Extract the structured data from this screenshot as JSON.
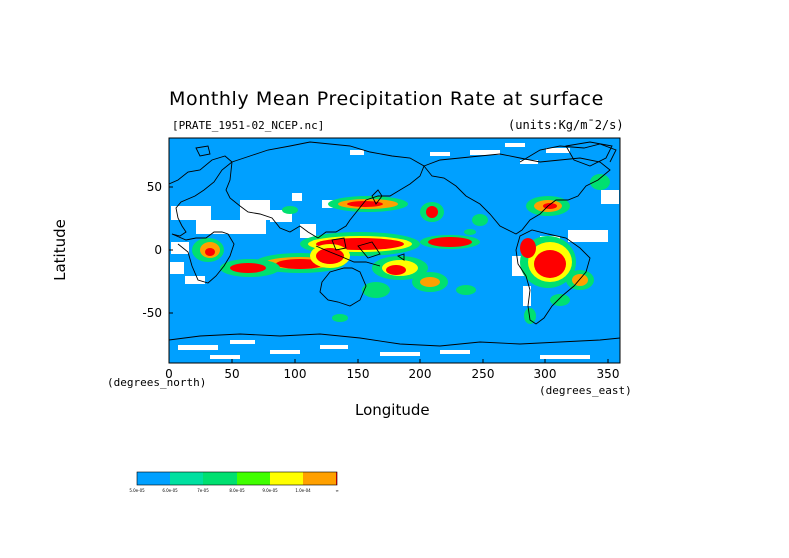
{
  "title": "Monthly Mean Precipitation Rate at surface",
  "file_label": "[PRATE_1951-02_NCEP.nc]",
  "units_label": "(units:Kg/m¯2/s)",
  "axes": {
    "x_title": "Longitude",
    "y_title": "Latitude",
    "x_units": "(degrees_east)",
    "y_units": "(degrees_north)",
    "x_ticks": [
      "0",
      "50",
      "100",
      "150",
      "200",
      "250",
      "300",
      "350"
    ],
    "y_ticks": [
      "50",
      "0",
      "-50"
    ]
  },
  "chart_data": {
    "type": "heatmap",
    "title": "Monthly Mean Precipitation Rate at surface",
    "xlabel": "Longitude",
    "ylabel": "Latitude",
    "xlim": [
      0,
      360
    ],
    "ylim": [
      -90,
      90
    ],
    "x_tick_values": [
      0,
      50,
      100,
      150,
      200,
      250,
      300,
      350
    ],
    "y_tick_values": [
      50,
      0,
      -50
    ],
    "colorbar": {
      "colors": [
        "#00a0ff",
        "#00e0a0",
        "#00e070",
        "#40ff00",
        "#ffff00",
        "#ffa000",
        "#ff0000"
      ],
      "labels": [
        "5.0e-05",
        "6.0e-05",
        "7e-05",
        "8.0e-05",
        "9.0e-05",
        "1.0e-04",
        "∞"
      ]
    }
  }
}
